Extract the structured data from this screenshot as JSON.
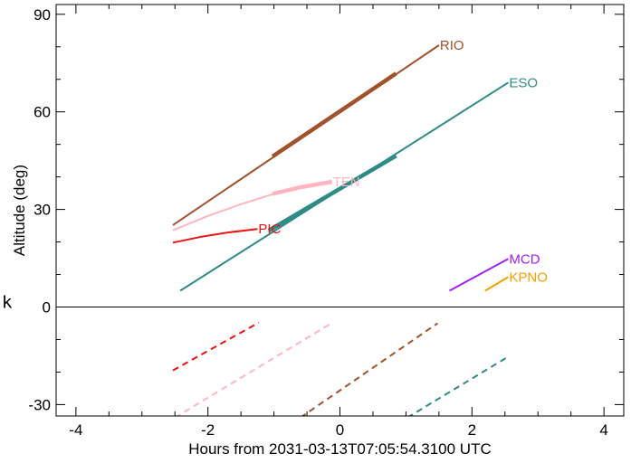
{
  "chart_data": {
    "type": "line",
    "title": "",
    "xlabel": "Hours from 2031-03-13T07:05:54.3100 UTC",
    "ylabel": "Altitude (deg)",
    "xlim": [
      -4.3,
      4.3
    ],
    "ylim": [
      -33.5,
      93
    ],
    "x_ticks": [
      -4,
      -2,
      0,
      2,
      4
    ],
    "y_ticks": [
      -30,
      0,
      30,
      60,
      90
    ],
    "zero_line": true,
    "grid": false,
    "side_text": "k",
    "series": [
      {
        "name": "RIO",
        "color": "#a0522d",
        "x": [
          -2.53,
          1.5
        ],
        "y": [
          25.2,
          80.5
        ],
        "highlight": {
          "x": [
            -1.02,
            0.85
          ],
          "y": [
            46.3,
            71.8
          ]
        },
        "dashed": {
          "x": [
            -0.6,
            1.48
          ],
          "y": [
            -34,
            -5
          ]
        }
      },
      {
        "name": "ESO",
        "color": "#2e8b86",
        "x": [
          -2.42,
          2.55
        ],
        "y": [
          5.0,
          69.0
        ],
        "highlight": {
          "x": [
            -1.08,
            0.85
          ],
          "y": [
            23.5,
            46.5
          ]
        },
        "dashed": {
          "x": [
            1.02,
            2.57
          ],
          "y": [
            -34,
            -15
          ]
        }
      },
      {
        "name": "TEN",
        "color": "#ffb6c1",
        "x": [
          -2.53,
          -2.0,
          -1.5,
          -1.0,
          -0.6,
          -0.12
        ],
        "y": [
          23.6,
          28.0,
          31.6,
          34.8,
          36.8,
          38.5
        ],
        "highlight": {
          "x": [
            -1.02,
            -0.6,
            -0.12
          ],
          "y": [
            34.8,
            36.8,
            38.5
          ]
        },
        "dashed": {
          "x": [
            -2.5,
            -0.13
          ],
          "y": [
            -34,
            -5
          ]
        }
      },
      {
        "name": "PIC",
        "color": "#ee1111",
        "x": [
          -2.53,
          -2.1,
          -1.7,
          -1.25
        ],
        "y": [
          19.8,
          21.6,
          22.9,
          24.0
        ],
        "highlight": null,
        "dashed": {
          "x": [
            -2.53,
            -1.23
          ],
          "y": [
            -19.5,
            -4.8
          ]
        }
      },
      {
        "name": "MCD",
        "color": "#a020f0",
        "x": [
          1.66,
          2.55
        ],
        "y": [
          5.0,
          14.8
        ],
        "highlight": null,
        "dashed": null
      },
      {
        "name": "KPNO",
        "color": "#f5a000",
        "x": [
          2.2,
          2.55
        ],
        "y": [
          5.0,
          9.2
        ],
        "highlight": null,
        "dashed": null
      }
    ]
  }
}
